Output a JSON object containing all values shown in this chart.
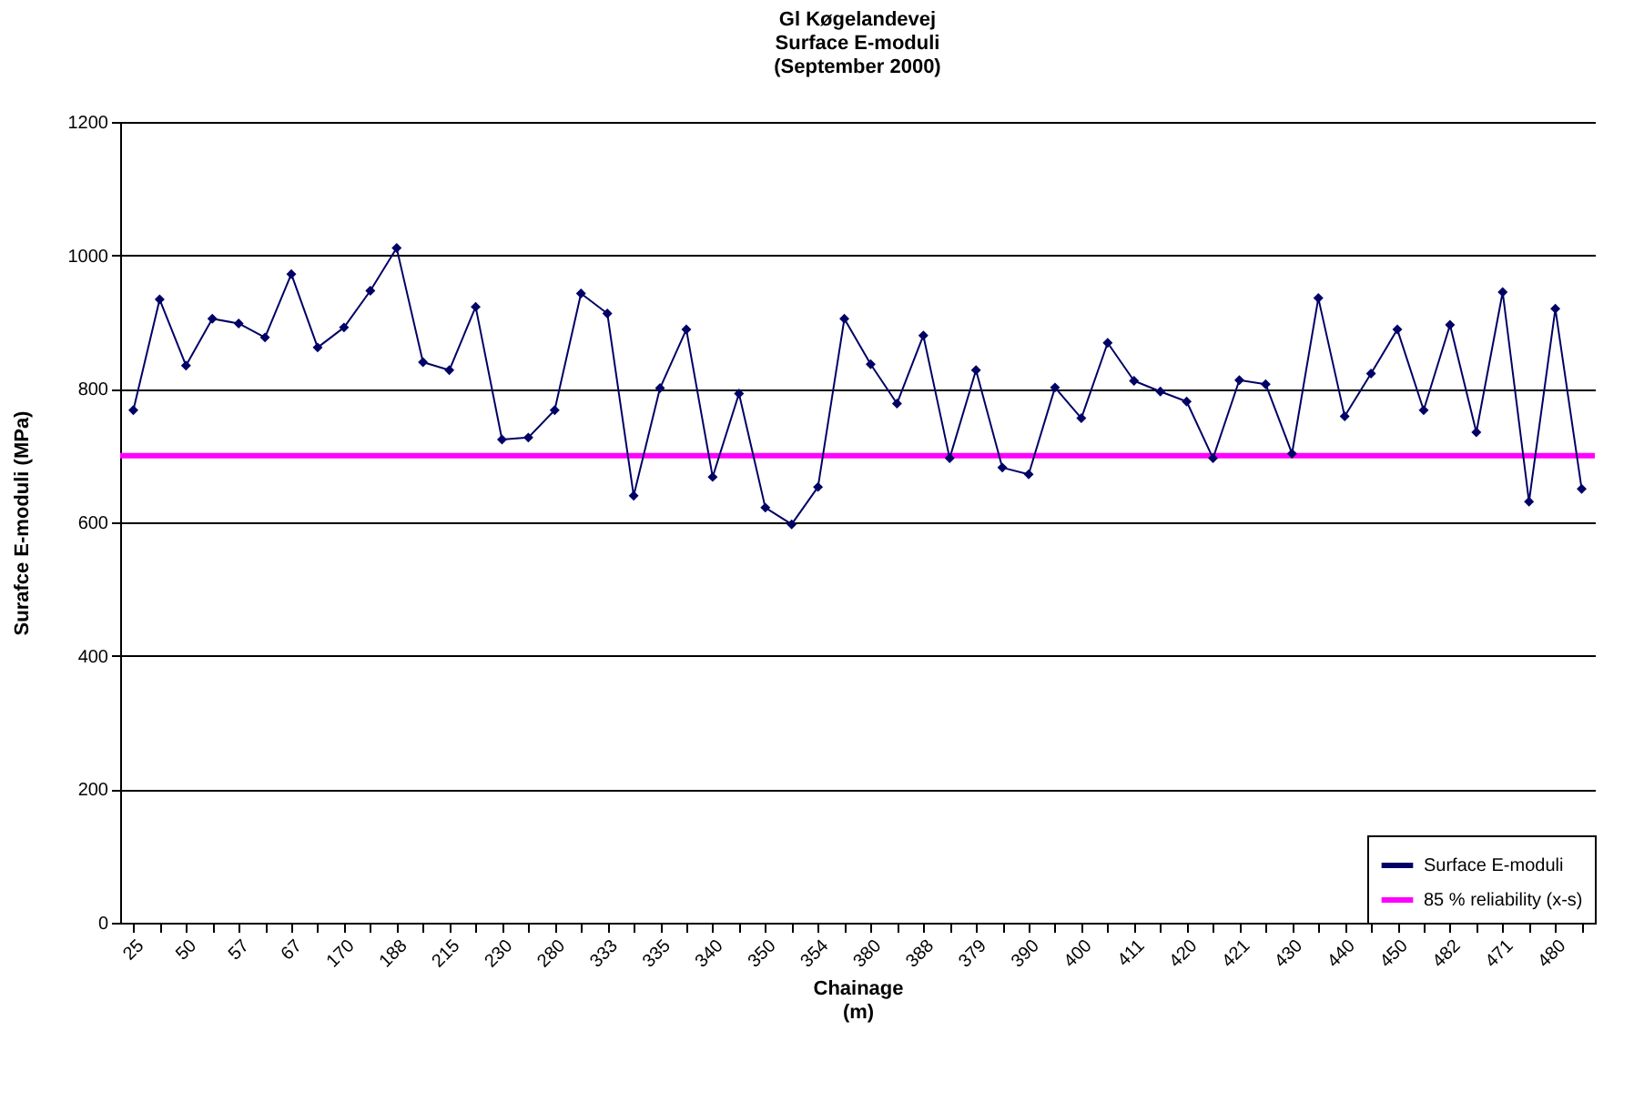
{
  "chart_data": {
    "type": "line",
    "title": "Gl Køgelandevej\nSurface E-moduli\n(September 2000)",
    "xlabel": "Chainage\n(m)",
    "ylabel": "Surafce E-moduli (MPa)",
    "categories": [
      "25",
      null,
      "50",
      null,
      "57",
      null,
      "67",
      null,
      "170",
      null,
      "188",
      null,
      "215",
      null,
      "230",
      null,
      "280",
      null,
      "333",
      null,
      "335",
      null,
      "340",
      null,
      "350",
      null,
      "354",
      null,
      "380",
      null,
      "388",
      null,
      "379",
      null,
      "390",
      null,
      "400",
      null,
      "411",
      null,
      "420",
      null,
      "421",
      null,
      "430",
      null,
      "440",
      null,
      "450",
      null,
      "482",
      null,
      "471",
      null,
      "480",
      null
    ],
    "series": [
      {
        "name": "Surface E-moduli",
        "color": "#000066",
        "values": [
          768,
          934,
          835,
          905,
          898,
          877,
          972,
          862,
          892,
          947,
          1011,
          840,
          828,
          923,
          724,
          727,
          768,
          943,
          913,
          640,
          801,
          889,
          668,
          793,
          622,
          597,
          653,
          905,
          837,
          778,
          880,
          696,
          828,
          682,
          672,
          802,
          756,
          869,
          812,
          796,
          781,
          696,
          813,
          807,
          703,
          936,
          759,
          823,
          889,
          768,
          896,
          735,
          945,
          631,
          920,
          650
        ]
      }
    ],
    "ref_lines": [
      {
        "axis": "y",
        "value": 700,
        "label": "85 % reliability (x-s)",
        "color": "#ff00ff"
      }
    ],
    "ylim": [
      0,
      1200
    ],
    "yticks": [
      0,
      200,
      400,
      600,
      800,
      1000,
      1200
    ],
    "grid": "y",
    "legend": "bottom right",
    "marker": "diamond",
    "line_style": "solid"
  }
}
